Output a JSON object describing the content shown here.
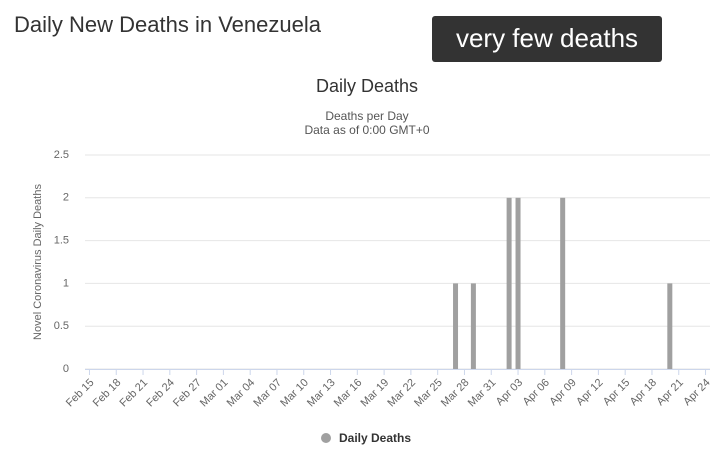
{
  "page_title": "Daily New Deaths in Venezuela",
  "badge": "very few deaths",
  "chart_data": {
    "type": "bar",
    "title": "Daily Deaths",
    "subtitle": [
      "Deaths per Day",
      "Data as of 0:00 GMT+0"
    ],
    "y_label": "Novel Coronavirus Daily Deaths",
    "categories": [
      "Feb 15",
      null,
      null,
      "Feb 18",
      null,
      null,
      "Feb 21",
      null,
      null,
      "Feb 24",
      null,
      null,
      "Feb 27",
      null,
      null,
      "Mar 01",
      null,
      null,
      "Mar 04",
      null,
      null,
      "Mar 07",
      null,
      null,
      "Mar 10",
      null,
      null,
      "Mar 13",
      null,
      null,
      "Mar 16",
      null,
      null,
      "Mar 19",
      null,
      null,
      "Mar 22",
      null,
      null,
      "Mar 25",
      null,
      null,
      "Mar 28",
      null,
      null,
      "Mar 31",
      null,
      null,
      "Apr 03",
      null,
      null,
      "Apr 06",
      null,
      null,
      "Apr 09",
      null,
      null,
      "Apr 12",
      null,
      null,
      "Apr 15",
      null,
      null,
      "Apr 18",
      null,
      null,
      "Apr 21",
      null,
      null,
      "Apr 24"
    ],
    "series": [
      {
        "name": "Daily Deaths",
        "color": "#a0a0a0",
        "values": [
          0,
          0,
          0,
          0,
          0,
          0,
          0,
          0,
          0,
          0,
          0,
          0,
          0,
          0,
          0,
          0,
          0,
          0,
          0,
          0,
          0,
          0,
          0,
          0,
          0,
          0,
          0,
          0,
          0,
          0,
          0,
          0,
          0,
          0,
          0,
          0,
          0,
          0,
          0,
          0,
          0,
          1,
          0,
          1,
          0,
          0,
          0,
          2,
          2,
          0,
          0,
          0,
          0,
          2,
          0,
          0,
          0,
          0,
          0,
          0,
          0,
          0,
          0,
          0,
          0,
          1,
          0,
          0,
          0,
          0
        ]
      }
    ],
    "ylim": [
      0,
      2.5
    ],
    "yticks": [
      0,
      0.5,
      1,
      1.5,
      2,
      2.5
    ],
    "grid": true
  }
}
